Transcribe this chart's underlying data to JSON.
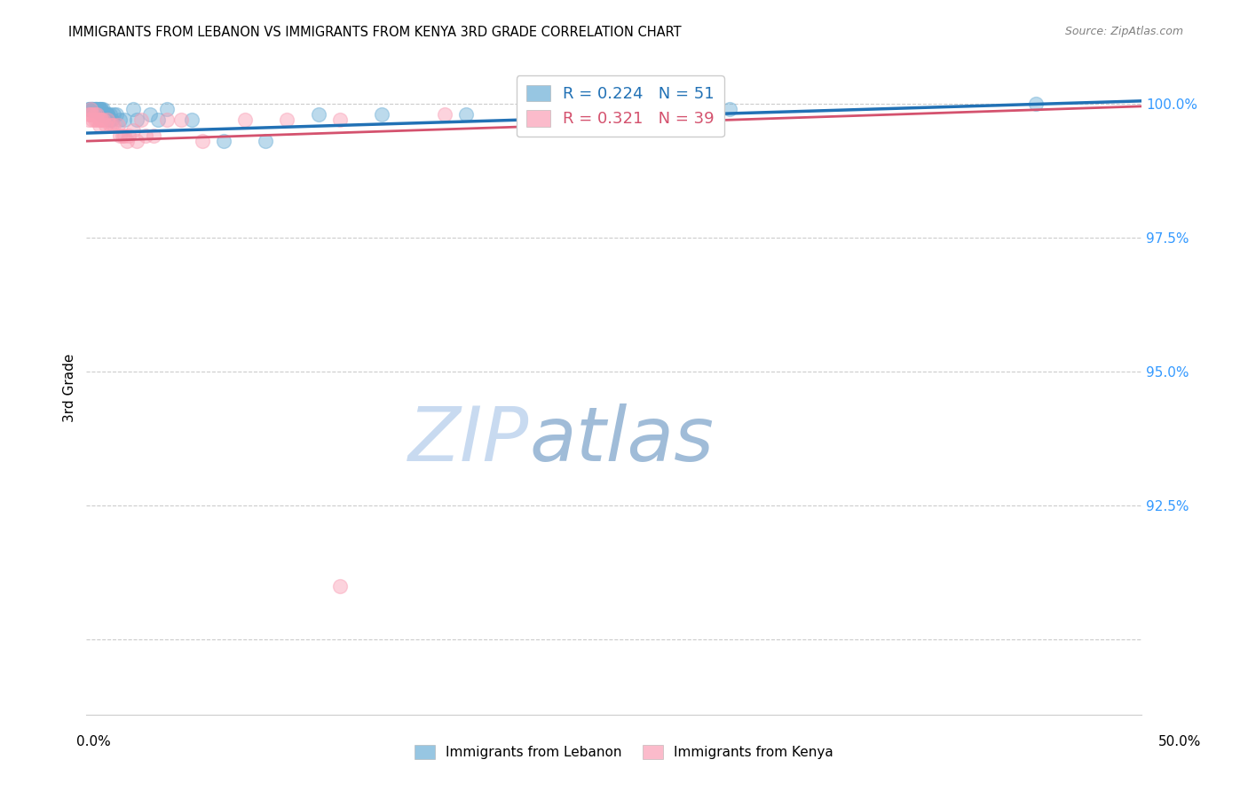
{
  "title": "IMMIGRANTS FROM LEBANON VS IMMIGRANTS FROM KENYA 3RD GRADE CORRELATION CHART",
  "source": "Source: ZipAtlas.com",
  "xlabel_label": "Immigrants from Lebanon",
  "ylabel_label": "3rd Grade",
  "xlabel_bottom_left": "0.0%",
  "xlabel_bottom_right": "50.0%",
  "xmin": 0.0,
  "xmax": 0.5,
  "ymin": 0.886,
  "ymax": 1.008,
  "yticks": [
    0.9,
    0.925,
    0.95,
    0.975,
    1.0
  ],
  "ytick_labels": [
    "",
    "92.5%",
    "95.0%",
    "97.5%",
    "100.0%"
  ],
  "R_lebanon": 0.224,
  "N_lebanon": 51,
  "R_kenya": 0.321,
  "N_kenya": 39,
  "blue_color": "#6baed6",
  "pink_color": "#fa9fb5",
  "blue_line_color": "#2171b5",
  "pink_line_color": "#d4526e",
  "watermark_ZIP_color": "#d0dff0",
  "watermark_atlas_color": "#b8cce4",
  "lebanon_x": [
    0.001,
    0.001,
    0.002,
    0.002,
    0.002,
    0.003,
    0.003,
    0.003,
    0.003,
    0.004,
    0.004,
    0.004,
    0.005,
    0.005,
    0.005,
    0.006,
    0.006,
    0.006,
    0.007,
    0.007,
    0.007,
    0.007,
    0.008,
    0.008,
    0.008,
    0.009,
    0.009,
    0.01,
    0.01,
    0.01,
    0.011,
    0.011,
    0.012,
    0.013,
    0.014,
    0.016,
    0.018,
    0.022,
    0.024,
    0.03,
    0.034,
    0.038,
    0.05,
    0.065,
    0.085,
    0.11,
    0.14,
    0.18,
    0.22,
    0.305,
    0.45
  ],
  "lebanon_y": [
    0.999,
    0.999,
    0.999,
    0.999,
    0.999,
    0.999,
    0.999,
    0.999,
    0.999,
    0.999,
    0.999,
    0.999,
    0.999,
    0.999,
    0.999,
    0.999,
    0.999,
    0.999,
    0.999,
    0.999,
    0.998,
    0.998,
    0.999,
    0.998,
    0.998,
    0.998,
    0.998,
    0.998,
    0.998,
    0.998,
    0.998,
    0.997,
    0.997,
    0.998,
    0.998,
    0.997,
    0.997,
    0.999,
    0.997,
    0.998,
    0.997,
    0.999,
    0.997,
    0.993,
    0.993,
    0.998,
    0.998,
    0.998,
    0.998,
    0.999,
    1.0
  ],
  "kenya_x": [
    0.001,
    0.001,
    0.002,
    0.002,
    0.003,
    0.003,
    0.004,
    0.004,
    0.005,
    0.005,
    0.006,
    0.006,
    0.007,
    0.007,
    0.008,
    0.009,
    0.01,
    0.011,
    0.012,
    0.013,
    0.015,
    0.016,
    0.017,
    0.018,
    0.019,
    0.02,
    0.022,
    0.024,
    0.026,
    0.028,
    0.032,
    0.038,
    0.045,
    0.055,
    0.075,
    0.095,
    0.12,
    0.17,
    0.12
  ],
  "kenya_y": [
    0.998,
    0.997,
    0.999,
    0.998,
    0.998,
    0.997,
    0.998,
    0.997,
    0.997,
    0.998,
    0.996,
    0.997,
    0.997,
    0.997,
    0.997,
    0.996,
    0.997,
    0.996,
    0.996,
    0.996,
    0.996,
    0.994,
    0.994,
    0.994,
    0.993,
    0.994,
    0.995,
    0.993,
    0.997,
    0.994,
    0.994,
    0.997,
    0.997,
    0.993,
    0.997,
    0.997,
    0.997,
    0.998,
    0.91
  ],
  "leb_line_x0": 0.0,
  "leb_line_x1": 0.5,
  "leb_line_y0": 0.9945,
  "leb_line_y1": 1.0005,
  "ken_line_x0": 0.0,
  "ken_line_x1": 0.5,
  "ken_line_y0": 0.993,
  "ken_line_y1": 0.9995
}
